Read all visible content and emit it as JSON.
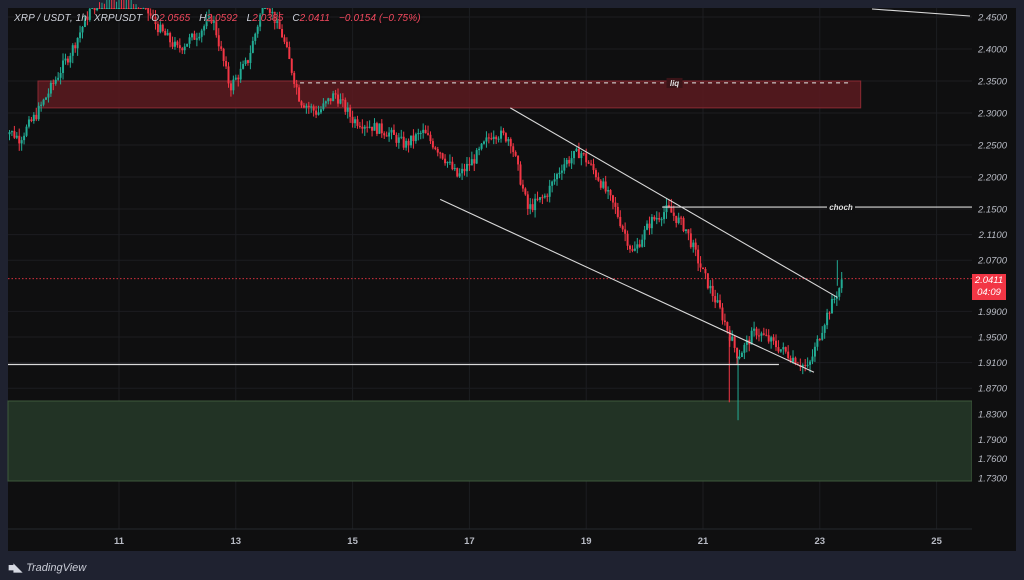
{
  "header": {
    "pair": "XRP / USDT, 1h",
    "symbol": "XRPUSDT",
    "open_label": "O",
    "open_value": "2.0565",
    "high_label": "H",
    "high_value": "2.0592",
    "low_label": "L",
    "low_value": "2.0385",
    "close_label": "C",
    "close_value": "2.0411",
    "change": "−0.0154 (−0.75%)"
  },
  "last_price": {
    "value": "2.0411",
    "countdown": "04:09",
    "color": "#f23645"
  },
  "footer": {
    "logo_icon": "tradingview-logo-icon",
    "brand": "TradingView"
  },
  "colors": {
    "up": "#22ab94",
    "down": "#f23645",
    "background": "#0f0f10",
    "frame": "#1f2230",
    "supply_zone": "#5c1a20",
    "demand_zone": "#223325",
    "annotation_line": "#d9d9d9"
  },
  "annotations": {
    "liq_label": "liq",
    "choch_label": "choch"
  },
  "chart_data": {
    "type": "candlestick",
    "title": "XRP / USDT, 1h",
    "xlabel": "",
    "ylabel": "",
    "x_ticks": [
      "11",
      "13",
      "15",
      "17",
      "19",
      "21",
      "23",
      "25"
    ],
    "y_ticks": [
      "2.4500",
      "2.4000",
      "2.3500",
      "2.3000",
      "2.2500",
      "2.2000",
      "2.1500",
      "2.1100",
      "2.0700",
      "1.9900",
      "1.9500",
      "1.9100",
      "1.8700",
      "1.8300",
      "1.7900",
      "1.7600",
      "1.7300"
    ],
    "ylim": [
      1.715,
      2.465
    ],
    "grid": true,
    "legend": "none",
    "last_price": 2.0411,
    "zones": [
      {
        "name": "supply zone (liq)",
        "price_from": 2.308,
        "price_to": 2.35,
        "from_day": 9.7,
        "to_day": 23.7,
        "color": "#5c1a20"
      },
      {
        "name": "demand zone",
        "price_from": 1.725,
        "price_to": 1.85,
        "from_day": 8.9,
        "to_day": 25.6,
        "color": "#223325"
      }
    ],
    "lines": [
      {
        "name": "liq dashed level",
        "price": 2.347,
        "from_day": 14.1,
        "to_day": 23.5,
        "style": "dashed",
        "label": "liq"
      },
      {
        "name": "choch level",
        "price": 2.153,
        "from_day": 20.3,
        "to_day": 25.6,
        "style": "solid",
        "label": "choch"
      },
      {
        "name": "support level",
        "price": 1.907,
        "from_day": 8.9,
        "to_day": 22.3,
        "style": "solid"
      },
      {
        "name": "channel upper",
        "points": [
          [
            17.7,
            2.308
          ],
          [
            23.3,
            2.012
          ]
        ]
      },
      {
        "name": "channel lower",
        "points": [
          [
            16.5,
            2.165
          ],
          [
            22.9,
            1.895
          ]
        ]
      },
      {
        "name": "top-right trendline",
        "points": [
          [
            23.9,
            2.463
          ],
          [
            25.6,
            2.457
          ]
        ]
      }
    ],
    "series": [
      {
        "name": "XRPUSDT close (approx, sampled ~every 4h)",
        "x_days": [
          9.0,
          9.3,
          9.6,
          9.9,
          10.2,
          10.5,
          10.8,
          11.1,
          11.4,
          11.7,
          12.0,
          12.3,
          12.6,
          12.9,
          13.2,
          13.5,
          13.8,
          14.1,
          14.4,
          14.7,
          15.0,
          15.3,
          15.6,
          15.9,
          16.2,
          16.5,
          16.8,
          17.1,
          17.4,
          17.7,
          18.0,
          18.3,
          18.6,
          18.9,
          19.2,
          19.5,
          19.8,
          20.1,
          20.4,
          20.7,
          21.0,
          21.3,
          21.6,
          21.9,
          22.2,
          22.5,
          22.8,
          23.1,
          23.4
        ],
        "values": [
          2.28,
          2.26,
          2.3,
          2.35,
          2.4,
          2.46,
          2.49,
          2.5,
          2.47,
          2.43,
          2.4,
          2.42,
          2.45,
          2.34,
          2.38,
          2.48,
          2.42,
          2.32,
          2.3,
          2.33,
          2.29,
          2.28,
          2.27,
          2.25,
          2.27,
          2.24,
          2.2,
          2.23,
          2.27,
          2.26,
          2.15,
          2.17,
          2.22,
          2.24,
          2.2,
          2.15,
          2.08,
          2.13,
          2.15,
          2.12,
          2.05,
          1.99,
          1.92,
          1.96,
          1.94,
          1.92,
          1.9,
          1.98,
          2.04
        ]
      }
    ]
  }
}
